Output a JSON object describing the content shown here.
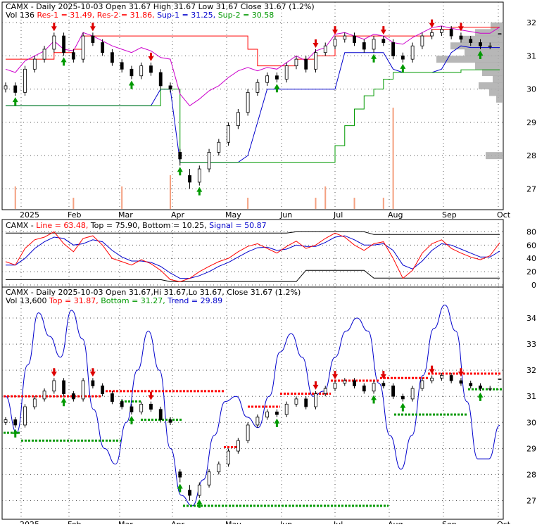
{
  "panels": [
    {
      "header": [
        {
          "text": "CAMX - Daily 2025-10-03 Open 31.67   High 31.67   Low 31.67   Close 31.67 (1.2%)",
          "color": "#000000"
        }
      ],
      "header2": [
        {
          "text": "Vol 136 ",
          "color": "#000000"
        },
        {
          "text": "Res-1 = 31.49, ",
          "color": "#ff0000"
        },
        {
          "text": "Res-2 = 31.86, ",
          "color": "#ff0000"
        },
        {
          "text": "Sup-1 = 31.25, ",
          "color": "#0000cc"
        },
        {
          "text": "Sup-2 = 30.58",
          "color": "#009900"
        }
      ],
      "y_ticks": [
        "32",
        "31",
        "30",
        "29",
        "28",
        "27"
      ],
      "x_ticks": [
        "2025",
        "Feb",
        "Mar",
        "Apr",
        "May",
        "Jun",
        "Jul",
        "Aug",
        "Sep",
        "Oct"
      ]
    },
    {
      "header2": [
        {
          "text": "CAMX - ",
          "color": "#000000"
        },
        {
          "text": "Line = 63.48, ",
          "color": "#ff0000"
        },
        {
          "text": "Top = 75.90, ",
          "color": "#000000"
        },
        {
          "text": "Bottom = 10.25, ",
          "color": "#000000"
        },
        {
          "text": "Signal = 50.87",
          "color": "#0000cc"
        }
      ],
      "y_ticks": [
        "80",
        "60",
        "40",
        "20",
        "0"
      ]
    },
    {
      "header": [
        {
          "text": "CAMX - Daily 2025-10-03 Open 31.67,Hi 31.67,Lo 31.67, Close 31.67 (1.2%)",
          "color": "#000000"
        }
      ],
      "header2": [
        {
          "text": "Vol 13,600 ",
          "color": "#000000"
        },
        {
          "text": "Top = 31.87, ",
          "color": "#ff0000"
        },
        {
          "text": "Bottom = 31.27, ",
          "color": "#009900"
        },
        {
          "text": "Trend = 29.89",
          "color": "#0000cc"
        }
      ],
      "y_ticks": [
        "34",
        "33",
        "32",
        "31",
        "30",
        "29",
        "28",
        "27"
      ],
      "x_ticks": [
        "2025",
        "Feb",
        "Mar",
        "Apr",
        "May",
        "Jun",
        "Jul",
        "Aug",
        "Sep",
        "Oct"
      ]
    }
  ],
  "colors": {
    "resistance": "#ff0000",
    "support": "#009900",
    "trend": "#0000cc",
    "magenta": "#cc00cc",
    "volume": "#f4a080",
    "grid": "#555555",
    "profile": "#aaaaaa"
  },
  "chart_data": [
    {
      "type": "candlestick",
      "x": [
        "2025-01-02",
        "2025-01-06",
        "2025-01-10",
        "2025-01-14",
        "2025-01-20",
        "2025-01-24",
        "2025-01-30",
        "2025-02-05",
        "2025-02-11",
        "2025-02-17",
        "2025-02-21",
        "2025-02-27",
        "2025-03-05",
        "2025-03-11",
        "2025-03-17",
        "2025-03-21",
        "2025-03-27",
        "2025-04-02",
        "2025-04-04",
        "2025-04-08",
        "2025-04-14",
        "2025-04-18",
        "2025-04-24",
        "2025-04-30",
        "2025-05-06",
        "2025-05-12",
        "2025-05-16",
        "2025-05-22",
        "2025-05-28",
        "2025-06-03",
        "2025-06-09",
        "2025-06-13",
        "2025-06-19",
        "2025-06-25",
        "2025-07-01",
        "2025-07-07",
        "2025-07-11",
        "2025-07-17",
        "2025-07-23",
        "2025-07-29",
        "2025-08-04",
        "2025-08-08",
        "2025-08-14",
        "2025-08-20",
        "2025-08-26",
        "2025-09-01",
        "2025-09-05",
        "2025-09-11",
        "2025-09-17",
        "2025-09-23",
        "2025-09-29",
        "2025-10-03"
      ],
      "close": [
        30.1,
        29.9,
        30.6,
        30.9,
        31.2,
        31.6,
        31.1,
        30.9,
        31.6,
        31.4,
        31.1,
        30.8,
        30.6,
        30.4,
        30.7,
        30.5,
        30.1,
        30.0,
        27.9,
        27.2,
        27.6,
        28.1,
        28.4,
        28.9,
        29.3,
        29.9,
        30.2,
        30.4,
        30.3,
        30.7,
        30.9,
        30.6,
        31.1,
        31.3,
        31.5,
        31.6,
        31.4,
        31.2,
        31.5,
        31.4,
        31.0,
        30.9,
        31.3,
        31.6,
        31.7,
        31.8,
        31.6,
        31.5,
        31.4,
        31.3,
        31.3,
        31.67
      ],
      "open": [
        30.0,
        30.1,
        29.9,
        30.6,
        30.9,
        31.2,
        31.6,
        31.1,
        30.9,
        31.6,
        31.4,
        31.1,
        30.8,
        30.6,
        30.4,
        30.7,
        30.5,
        30.1,
        28.1,
        27.4,
        27.2,
        27.6,
        28.1,
        28.4,
        28.9,
        29.3,
        29.9,
        30.2,
        30.4,
        30.3,
        30.7,
        30.9,
        30.6,
        31.1,
        31.3,
        31.5,
        31.6,
        31.4,
        31.2,
        31.5,
        31.4,
        31.0,
        30.9,
        31.3,
        31.6,
        31.7,
        31.8,
        31.6,
        31.5,
        31.4,
        31.3,
        31.67
      ],
      "high": [
        30.2,
        30.2,
        30.7,
        31.0,
        31.3,
        31.7,
        31.7,
        31.2,
        31.7,
        31.7,
        31.5,
        31.2,
        30.9,
        30.7,
        30.8,
        30.8,
        30.6,
        30.2,
        28.2,
        27.6,
        27.7,
        28.2,
        28.5,
        29.0,
        29.4,
        30.0,
        30.3,
        30.5,
        30.5,
        30.8,
        31.0,
        31.0,
        31.2,
        31.4,
        31.6,
        31.7,
        31.7,
        31.5,
        31.6,
        31.6,
        31.5,
        31.1,
        31.4,
        31.7,
        31.8,
        31.9,
        31.9,
        31.7,
        31.6,
        31.5,
        31.4,
        31.67
      ],
      "low": [
        29.9,
        29.8,
        29.8,
        30.5,
        30.8,
        31.1,
        31.0,
        30.8,
        30.8,
        31.3,
        31.0,
        30.7,
        30.5,
        30.3,
        30.3,
        30.4,
        30.0,
        29.9,
        27.7,
        27.0,
        27.1,
        27.5,
        28.0,
        28.3,
        28.8,
        29.2,
        29.8,
        30.1,
        30.2,
        30.2,
        30.6,
        30.5,
        30.5,
        31.0,
        31.2,
        31.4,
        31.3,
        31.1,
        31.1,
        31.3,
        30.9,
        30.8,
        30.8,
        31.2,
        31.5,
        31.6,
        31.5,
        31.4,
        31.3,
        31.2,
        31.2,
        31.67
      ],
      "resistance": [
        30.9,
        30.9,
        30.9,
        30.9,
        30.9,
        31.1,
        31.1,
        31.2,
        31.6,
        31.6,
        31.6,
        31.6,
        31.6,
        31.6,
        31.6,
        31.6,
        31.6,
        31.6,
        31.6,
        31.6,
        31.6,
        31.6,
        31.6,
        31.6,
        31.6,
        31.2,
        30.7,
        30.7,
        30.7,
        30.7,
        30.9,
        30.9,
        31.0,
        31.0,
        31.6,
        31.6,
        31.6,
        31.6,
        31.6,
        31.6,
        31.6,
        31.6,
        31.6,
        31.6,
        31.8,
        31.8,
        31.86,
        31.86,
        31.86,
        31.86,
        31.86,
        31.86
      ],
      "support1": [
        29.5,
        29.5,
        29.5,
        29.5,
        29.5,
        29.5,
        29.5,
        29.5,
        29.5,
        29.5,
        29.5,
        29.5,
        29.5,
        29.5,
        29.5,
        29.5,
        30.0,
        30.0,
        27.8,
        27.8,
        27.8,
        27.8,
        27.8,
        27.8,
        27.8,
        28.0,
        29.0,
        30.0,
        30.0,
        30.0,
        30.0,
        30.0,
        30.0,
        30.0,
        30.0,
        31.1,
        31.1,
        31.1,
        31.1,
        31.1,
        30.6,
        30.5,
        30.5,
        30.5,
        30.5,
        30.6,
        31.1,
        31.3,
        31.25,
        31.25,
        31.25,
        31.25
      ],
      "support2": [
        29.5,
        29.5,
        29.5,
        29.5,
        29.5,
        29.5,
        29.5,
        29.5,
        29.5,
        29.5,
        29.5,
        29.5,
        29.5,
        29.5,
        29.5,
        29.5,
        30.0,
        30.0,
        27.8,
        27.8,
        27.8,
        27.8,
        27.8,
        27.8,
        27.8,
        27.8,
        27.8,
        27.8,
        27.8,
        27.8,
        27.8,
        27.8,
        27.8,
        27.8,
        28.3,
        28.9,
        29.4,
        29.8,
        30.0,
        30.3,
        30.5,
        30.5,
        30.5,
        30.5,
        30.5,
        30.5,
        30.5,
        30.58,
        30.58,
        30.58,
        30.58,
        30.58
      ],
      "ylim": [
        26.5,
        32.3
      ]
    },
    {
      "type": "line",
      "series": [
        {
          "name": "Line",
          "values": [
            35,
            30,
            55,
            68,
            72,
            80,
            62,
            50,
            70,
            74,
            60,
            40,
            35,
            30,
            38,
            32,
            22,
            8,
            5,
            10,
            20,
            28,
            35,
            40,
            50,
            58,
            62,
            55,
            48,
            58,
            66,
            55,
            60,
            70,
            78,
            72,
            60,
            52,
            62,
            65,
            40,
            10,
            22,
            48,
            62,
            68,
            55,
            48,
            42,
            38,
            44,
            63.48
          ]
        },
        {
          "name": "Signal",
          "values": [
            30,
            30,
            40,
            55,
            65,
            72,
            70,
            60,
            62,
            68,
            65,
            52,
            42,
            36,
            36,
            34,
            28,
            18,
            10,
            10,
            14,
            20,
            28,
            34,
            42,
            50,
            56,
            57,
            52,
            54,
            60,
            58,
            58,
            64,
            72,
            74,
            68,
            60,
            60,
            62,
            52,
            30,
            24,
            36,
            52,
            62,
            60,
            54,
            48,
            42,
            42,
            50.87
          ]
        }
      ],
      "top": 75.9,
      "bottom": 10.25,
      "ylim": [
        0,
        90
      ]
    },
    {
      "type": "line",
      "series": [
        {
          "name": "Trend",
          "values": [
            31.0,
            29.6,
            32.2,
            34.2,
            33.3,
            32.5,
            34.3,
            33.2,
            30.5,
            29.0,
            28.4,
            30.0,
            32.0,
            33.5,
            32.0,
            29.0,
            27.2,
            26.8,
            27.8,
            29.5,
            30.8,
            31.0,
            30.2,
            29.8,
            31.0,
            32.7,
            33.4,
            32.5,
            31.0,
            31.2,
            32.5,
            33.5,
            34.0,
            33.5,
            31.5,
            29.5,
            28.2,
            29.5,
            31.8,
            33.6,
            34.5,
            33.5,
            30.8,
            28.6,
            28.6,
            29.89
          ]
        }
      ],
      "top": 31.87,
      "bottom": 31.27,
      "ylim": [
        26.5,
        35.0
      ]
    }
  ]
}
